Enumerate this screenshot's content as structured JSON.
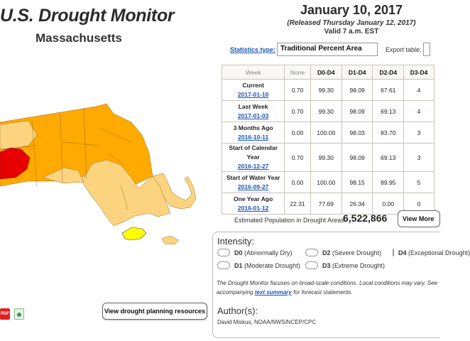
{
  "header": {
    "title": "U.S. Drought Monitor",
    "state": "Massachusetts"
  },
  "date": {
    "main": "January 10, 2017",
    "released": "(Released Thursday January 12, 2017)",
    "valid": "Valid 7 a.m. EST"
  },
  "controls": {
    "stat_type_label": "Statistics type:",
    "stat_type_value": "Traditional Percent Area",
    "export_label": "Export table:"
  },
  "table": {
    "headers": [
      "Week",
      "None",
      "D0-D4",
      "D1-D4",
      "D2-D4",
      "D3-D4"
    ],
    "rows": [
      {
        "label": "Current",
        "date": "2017-01-10",
        "none": "0.70",
        "d0": "99.30",
        "d1": "98.09",
        "d2": "67.61",
        "d3": "4"
      },
      {
        "label": "Last Week",
        "date": "2017-01-03",
        "none": "0.70",
        "d0": "99.30",
        "d1": "98.09",
        "d2": "69.13",
        "d3": "4"
      },
      {
        "label": "3 Months Ago",
        "date": "2016-10-11",
        "none": "0.00",
        "d0": "100.00",
        "d1": "98.03",
        "d2": "83.70",
        "d3": "3"
      },
      {
        "label": "Start of Calendar Year",
        "date": "2016-12-27",
        "none": "0.70",
        "d0": "99.30",
        "d1": "98.09",
        "d2": "69.13",
        "d3": "3"
      },
      {
        "label": "Start of Water Year",
        "date": "2016-09-27",
        "none": "0.00",
        "d0": "100.00",
        "d1": "98.15",
        "d2": "89.95",
        "d3": "5"
      },
      {
        "label": "One Year Ago",
        "date": "2016-01-12",
        "none": "22.31",
        "d0": "77.69",
        "d1": "26.34",
        "d2": "0.00",
        "d3": "0"
      }
    ]
  },
  "population": {
    "label": "Estimated Population in Drought Areas:",
    "value": "6,522,866",
    "more_button": "View More"
  },
  "intensity": {
    "title": "Intensity:",
    "items": [
      {
        "code": "D0",
        "text": "(Abnormally Dry)"
      },
      {
        "code": "D1",
        "text": "(Moderate Drought)"
      },
      {
        "code": "D2",
        "text": "(Severe Drought)"
      },
      {
        "code": "D3",
        "text": "(Extreme Drought)"
      },
      {
        "code": "D4",
        "text": "(Exceptional Drought)"
      }
    ]
  },
  "description": {
    "line1": "The Drought Monitor focuses on broad-scale conditions. Local conditions may vary. See",
    "line2_before": "accompanying ",
    "link": "text summary",
    "line2_after": " for forecast statements."
  },
  "authors": {
    "title": "Author(s):",
    "name": "David Miskus, NOAA/NWS/NCEP/CPC"
  },
  "buttons": {
    "planning": "View drought planning resources"
  },
  "icons": {
    "pdf": "PDF"
  },
  "colors": {
    "d0": "#ffff00",
    "d1": "#fcd37f",
    "d2": "#ffaa00",
    "d3": "#e60000",
    "link": "#1a55b6"
  }
}
